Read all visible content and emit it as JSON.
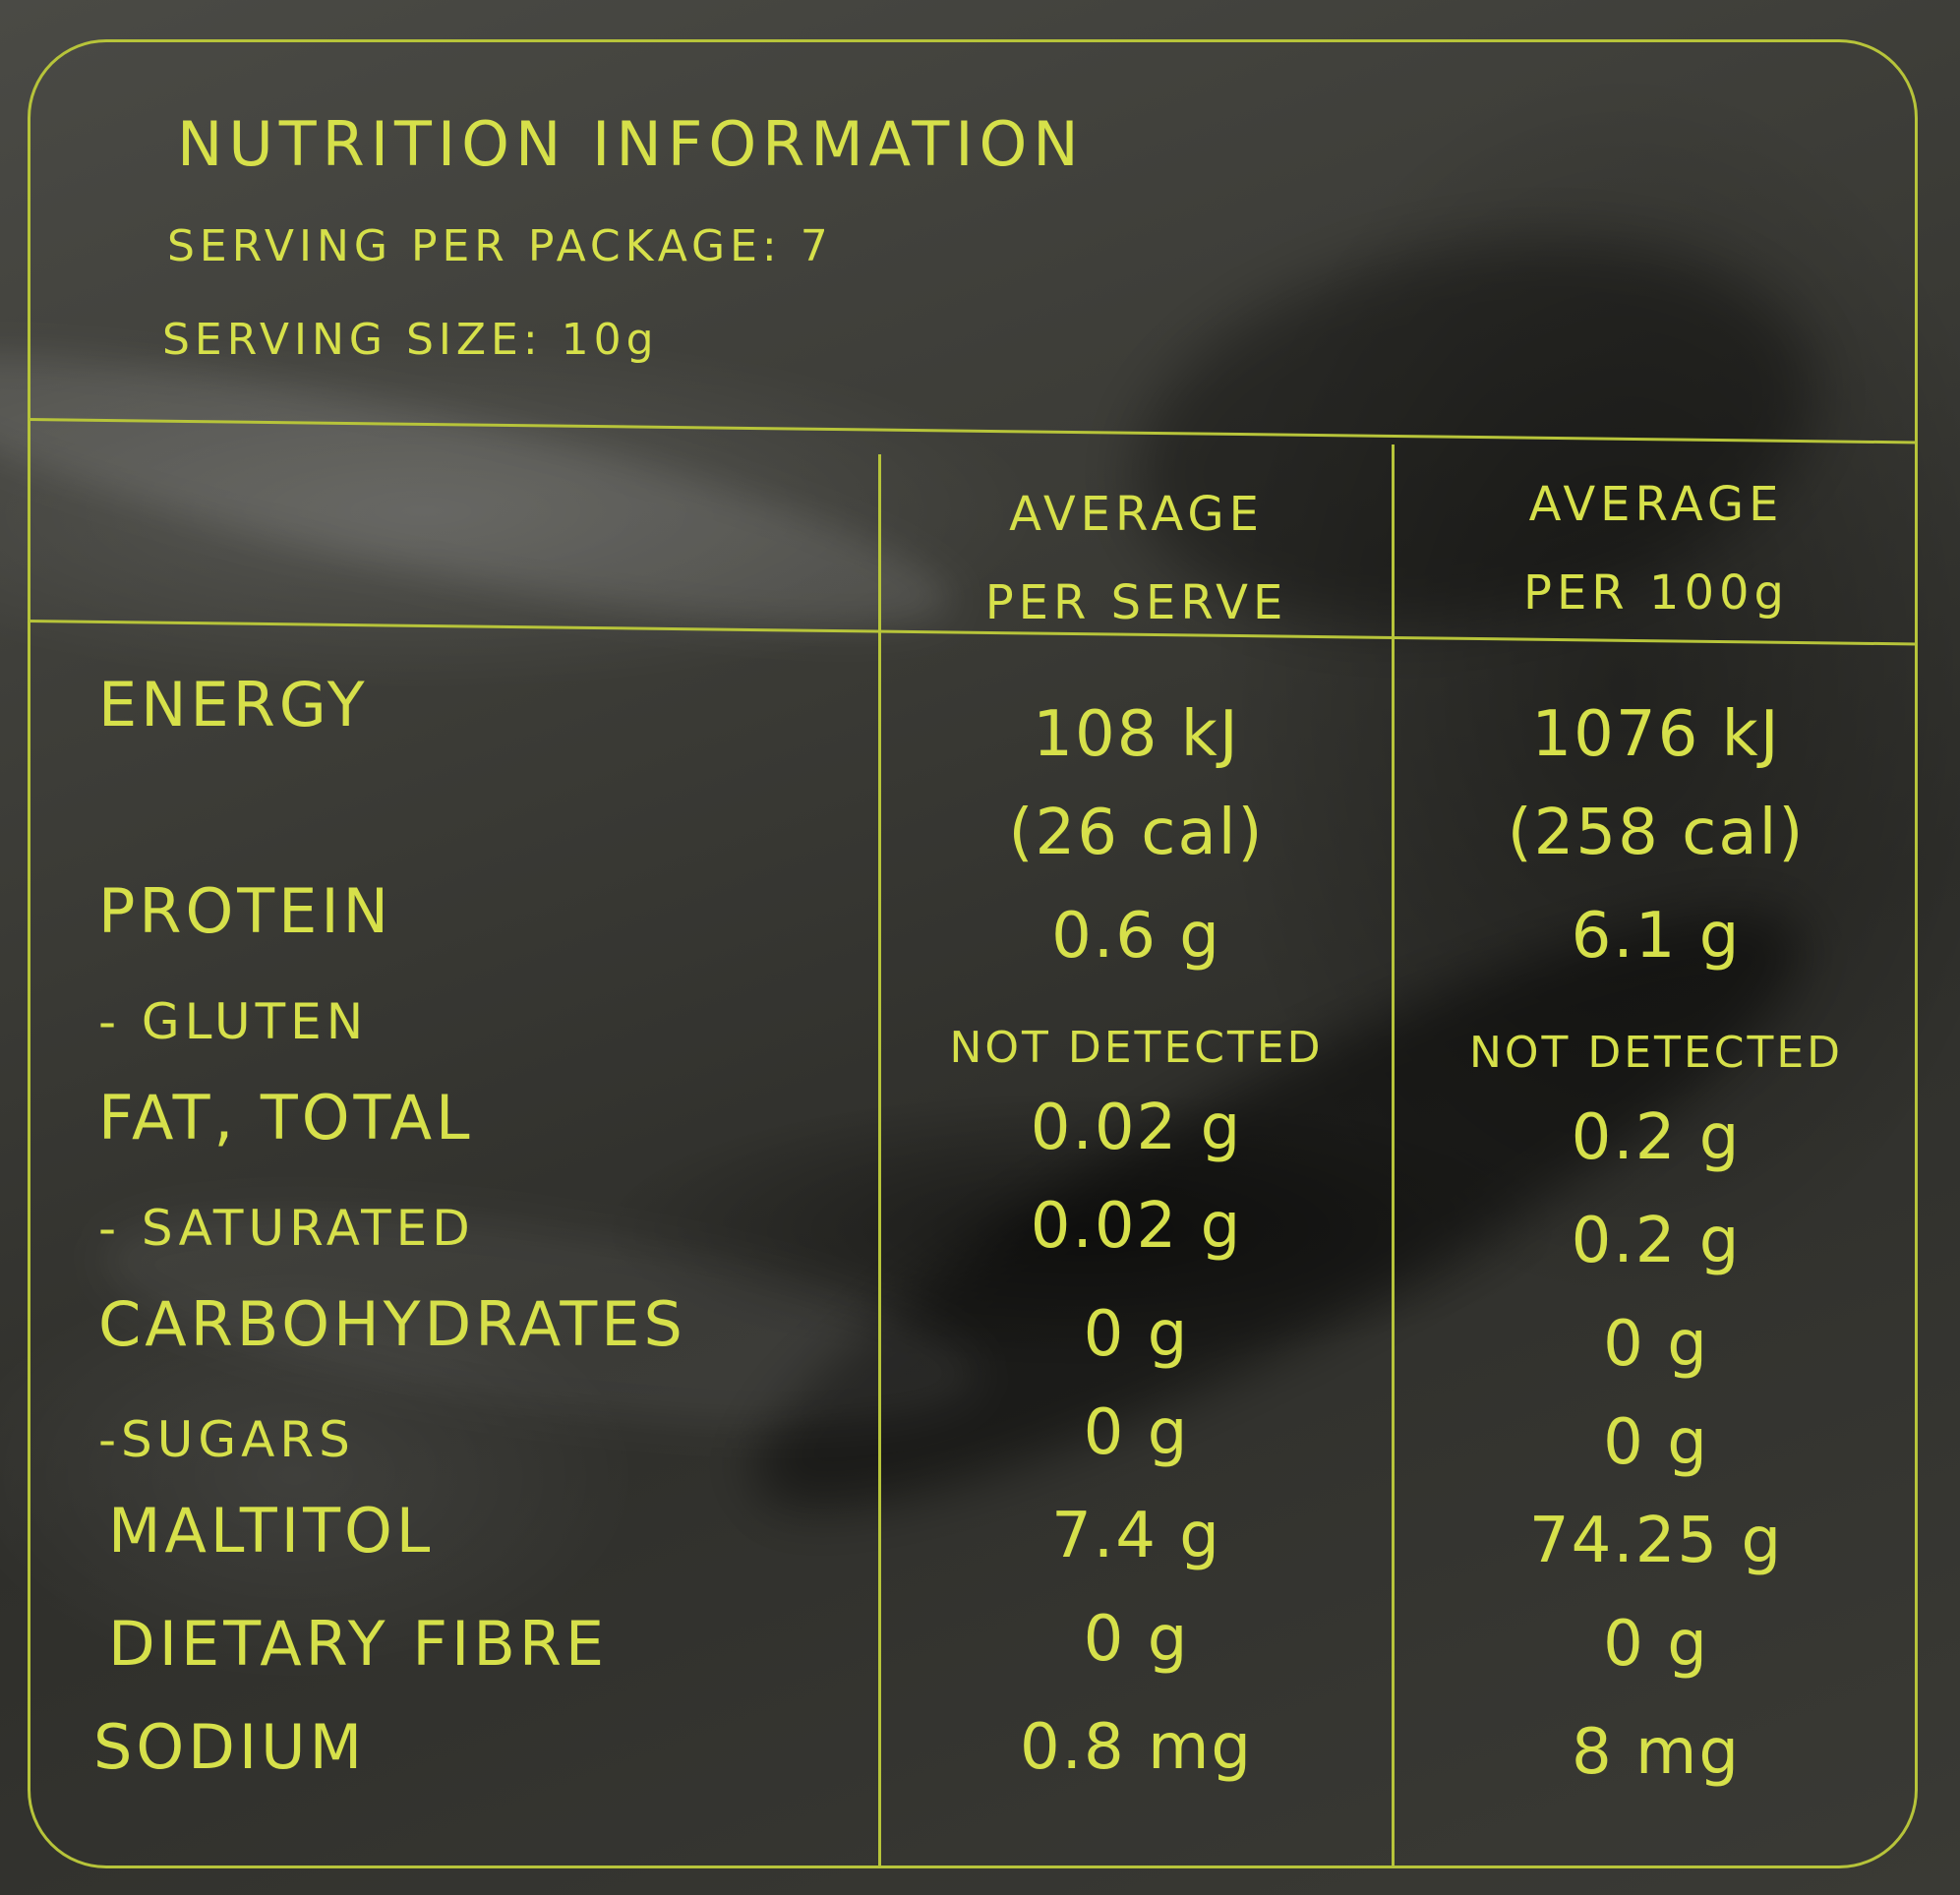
{
  "title": "NUTRITION INFORMATION",
  "serving_per_package": "SERVING PER PACKAGE: 7",
  "serving_size": "SERVING SIZE: 10g",
  "headers": {
    "per_serve_line1": "AVERAGE",
    "per_serve_line2": "PER SERVE",
    "per_100g_line1": "AVERAGE",
    "per_100g_line2": "PER 100g"
  },
  "rows": {
    "energy": {
      "label": "ENERGY",
      "serve_kj": "108 kJ",
      "serve_cal": "(26 cal)",
      "g100_kj": "1076 kJ",
      "g100_cal": "(258 cal)"
    },
    "protein": {
      "label": "PROTEIN",
      "serve": "0.6 g",
      "g100": "6.1 g"
    },
    "gluten": {
      "label": "- GLUTEN",
      "serve": "NOT DETECTED",
      "g100": "NOT DETECTED"
    },
    "fat_total": {
      "label": "FAT, TOTAL",
      "serve": "0.02 g",
      "g100": "0.2 g"
    },
    "saturated": {
      "label": "- SATURATED",
      "serve": "0.02 g",
      "g100": "0.2 g"
    },
    "carbohydrates": {
      "label": "CARBOHYDRATES",
      "serve": "0 g",
      "g100": "0 g"
    },
    "sugars": {
      "label": "-SUGARS",
      "serve": "0 g",
      "g100": "0 g"
    },
    "maltitol": {
      "label": "MALTITOL",
      "serve": "7.4 g",
      "g100": "74.25 g"
    },
    "dietary_fibre": {
      "label": "DIETARY FIBRE",
      "serve": "0 g",
      "g100": "0 g"
    },
    "sodium": {
      "label": "SODIUM",
      "serve": "0.8 mg",
      "g100": "8 mg"
    }
  },
  "colors": {
    "ink": "#d6e04a",
    "rule": "#b7c43a",
    "background": "#3a3a35"
  }
}
